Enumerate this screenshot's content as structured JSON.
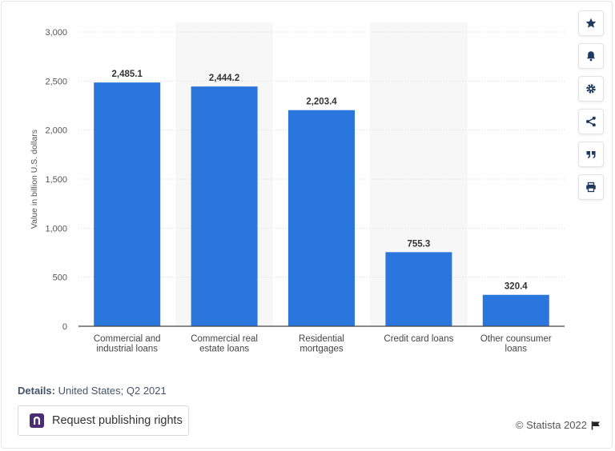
{
  "chart_data": {
    "type": "bar",
    "title": "",
    "xlabel": "",
    "ylabel": "Value in billion U.S. dollars",
    "ylim": [
      0,
      3000
    ],
    "yticks": [
      0,
      500,
      1000,
      1500,
      2000,
      2500,
      3000
    ],
    "ytick_labels": [
      "0",
      "500",
      "1,000",
      "1,500",
      "2,000",
      "2,500",
      "3,000"
    ],
    "categories": [
      [
        "Commercial and",
        "industrial loans"
      ],
      [
        "Commercial real",
        "estate loans"
      ],
      [
        "Residential",
        "mortgages"
      ],
      [
        "Credit card loans"
      ],
      [
        "Other counsumer",
        "loans"
      ]
    ],
    "values": [
      2485.1,
      2444.2,
      2203.4,
      755.3,
      320.4
    ],
    "value_labels": [
      "2,485.1",
      "2,444.2",
      "2,203.4",
      "755.3",
      "320.4"
    ],
    "bar_color": "#2a76dd",
    "grid": true
  },
  "details": {
    "label": "Details:",
    "text": "United States; Q2 2021"
  },
  "publish_button": {
    "label": "Request publishing rights"
  },
  "copyright": "© Statista 2022",
  "toolbar": [
    "star-icon",
    "bell-icon",
    "gear-icon",
    "share-icon",
    "quote-icon",
    "print-icon"
  ]
}
